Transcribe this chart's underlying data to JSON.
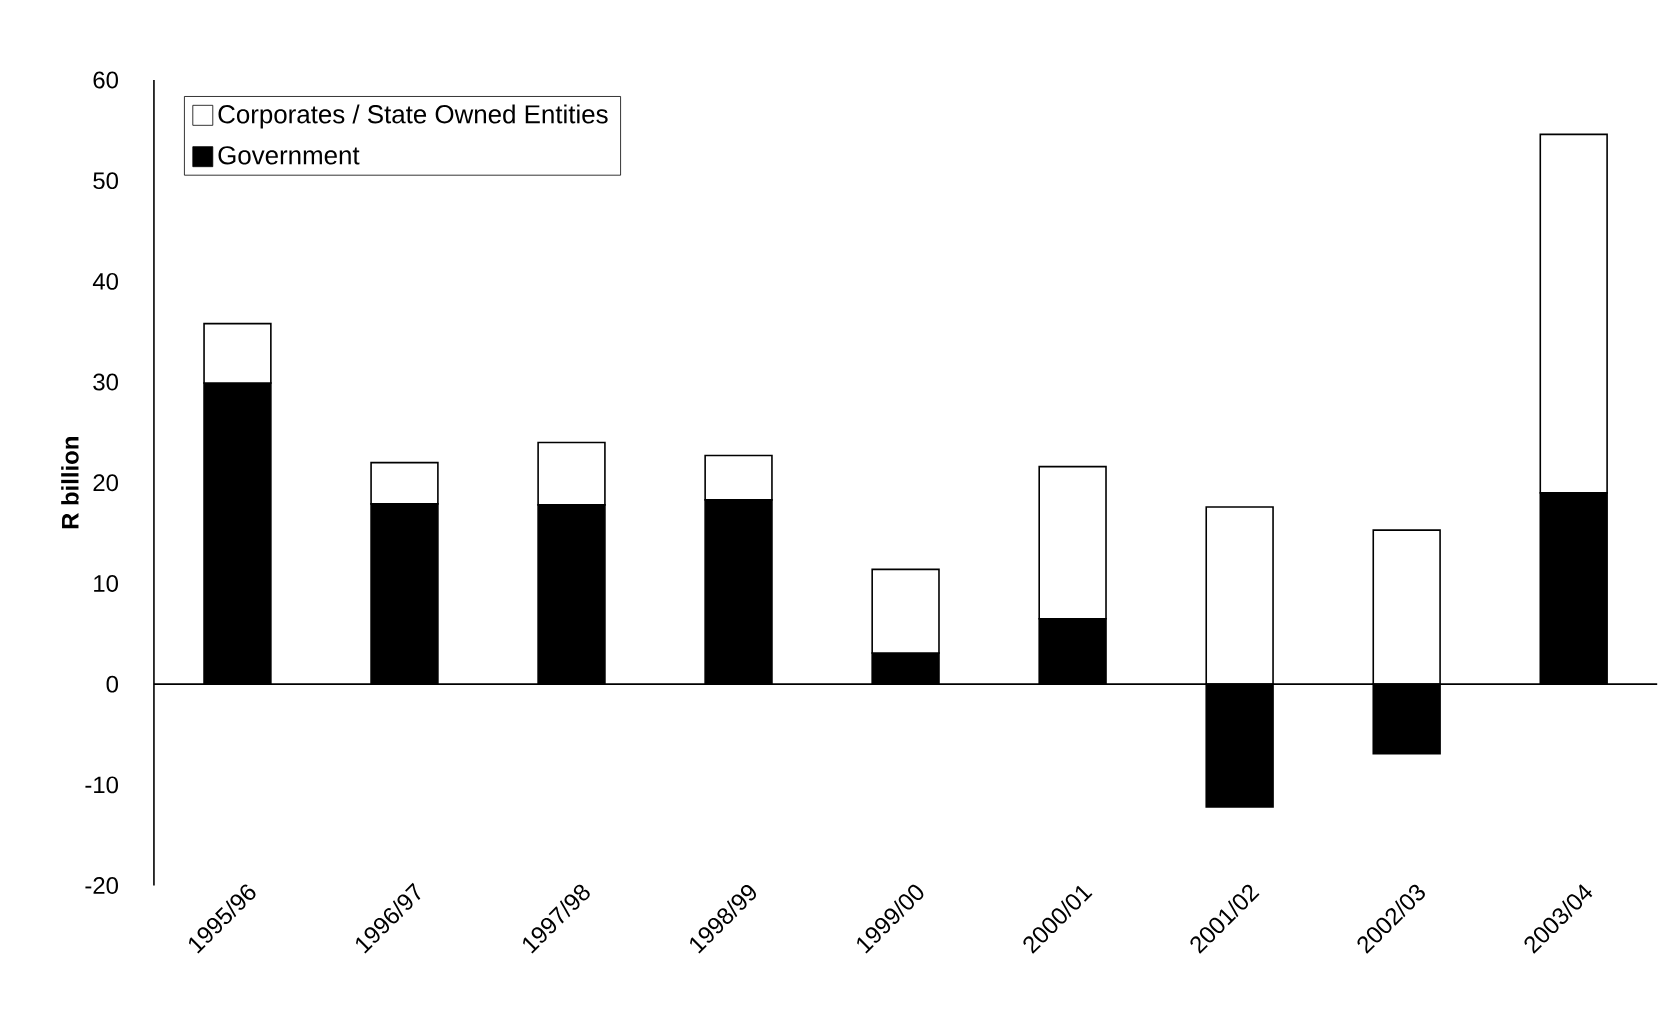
{
  "chart_data": {
    "type": "bar",
    "stacked": true,
    "ylabel": "R billion",
    "categories": [
      "1995/96",
      "1996/97",
      "1997/98",
      "1998/99",
      "1999/00",
      "2000/01",
      "2001/02",
      "2002/03",
      "2003/04"
    ],
    "series": [
      {
        "name": "Government",
        "color": "#000000",
        "values": [
          29.9,
          17.9,
          17.8,
          18.3,
          3.1,
          6.5,
          -12.2,
          -6.9,
          19.0
        ]
      },
      {
        "name": "Corporates / State Owned Entities",
        "color": "#ffffff",
        "values": [
          5.9,
          4.1,
          6.2,
          4.4,
          8.3,
          15.1,
          17.6,
          15.3,
          35.6
        ]
      }
    ],
    "ylim": [
      -20,
      60
    ],
    "yticks": [
      -20,
      -10,
      0,
      10,
      20,
      30,
      40,
      50,
      60
    ],
    "legend": "top left"
  }
}
